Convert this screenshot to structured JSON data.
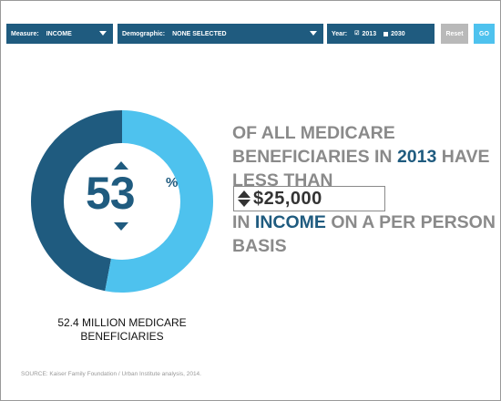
{
  "toolbar": {
    "measure_label": "Measure:",
    "measure_value": "INCOME",
    "demographic_label": "Demographic:",
    "demographic_value": "NONE SELECTED",
    "year_label": "Year:",
    "year_option_1": "2013",
    "year_option_2": "2030",
    "year_selected": "2013",
    "reset_label": "Reset",
    "go_label": "GO"
  },
  "donut": {
    "percent_value": "53",
    "percent_sign": "%",
    "share": 0.53,
    "color_primary": "#4ec2ee",
    "color_secondary": "#1f5b7f"
  },
  "caption": {
    "line1": "52.4 MILLION MEDICARE",
    "line2": "BENEFICIARIES"
  },
  "statement": {
    "part1": "OF ALL MEDICARE BENEFICIARIES IN",
    "year": "2013",
    "part2": "HAVE LESS THAN",
    "amount": "$25,000",
    "part3": "IN",
    "measure": "INCOME",
    "part4": "ON A PER PERSON BASIS"
  },
  "source": "SOURCE: Kaiser Family Foundation / Urban Institute analysis, 2014.",
  "colors": {
    "accent_dark": "#1f5b7f",
    "accent_light": "#4ec2ee",
    "reset_gray": "#b9b9b9",
    "text_gray": "#8a8a8a"
  }
}
